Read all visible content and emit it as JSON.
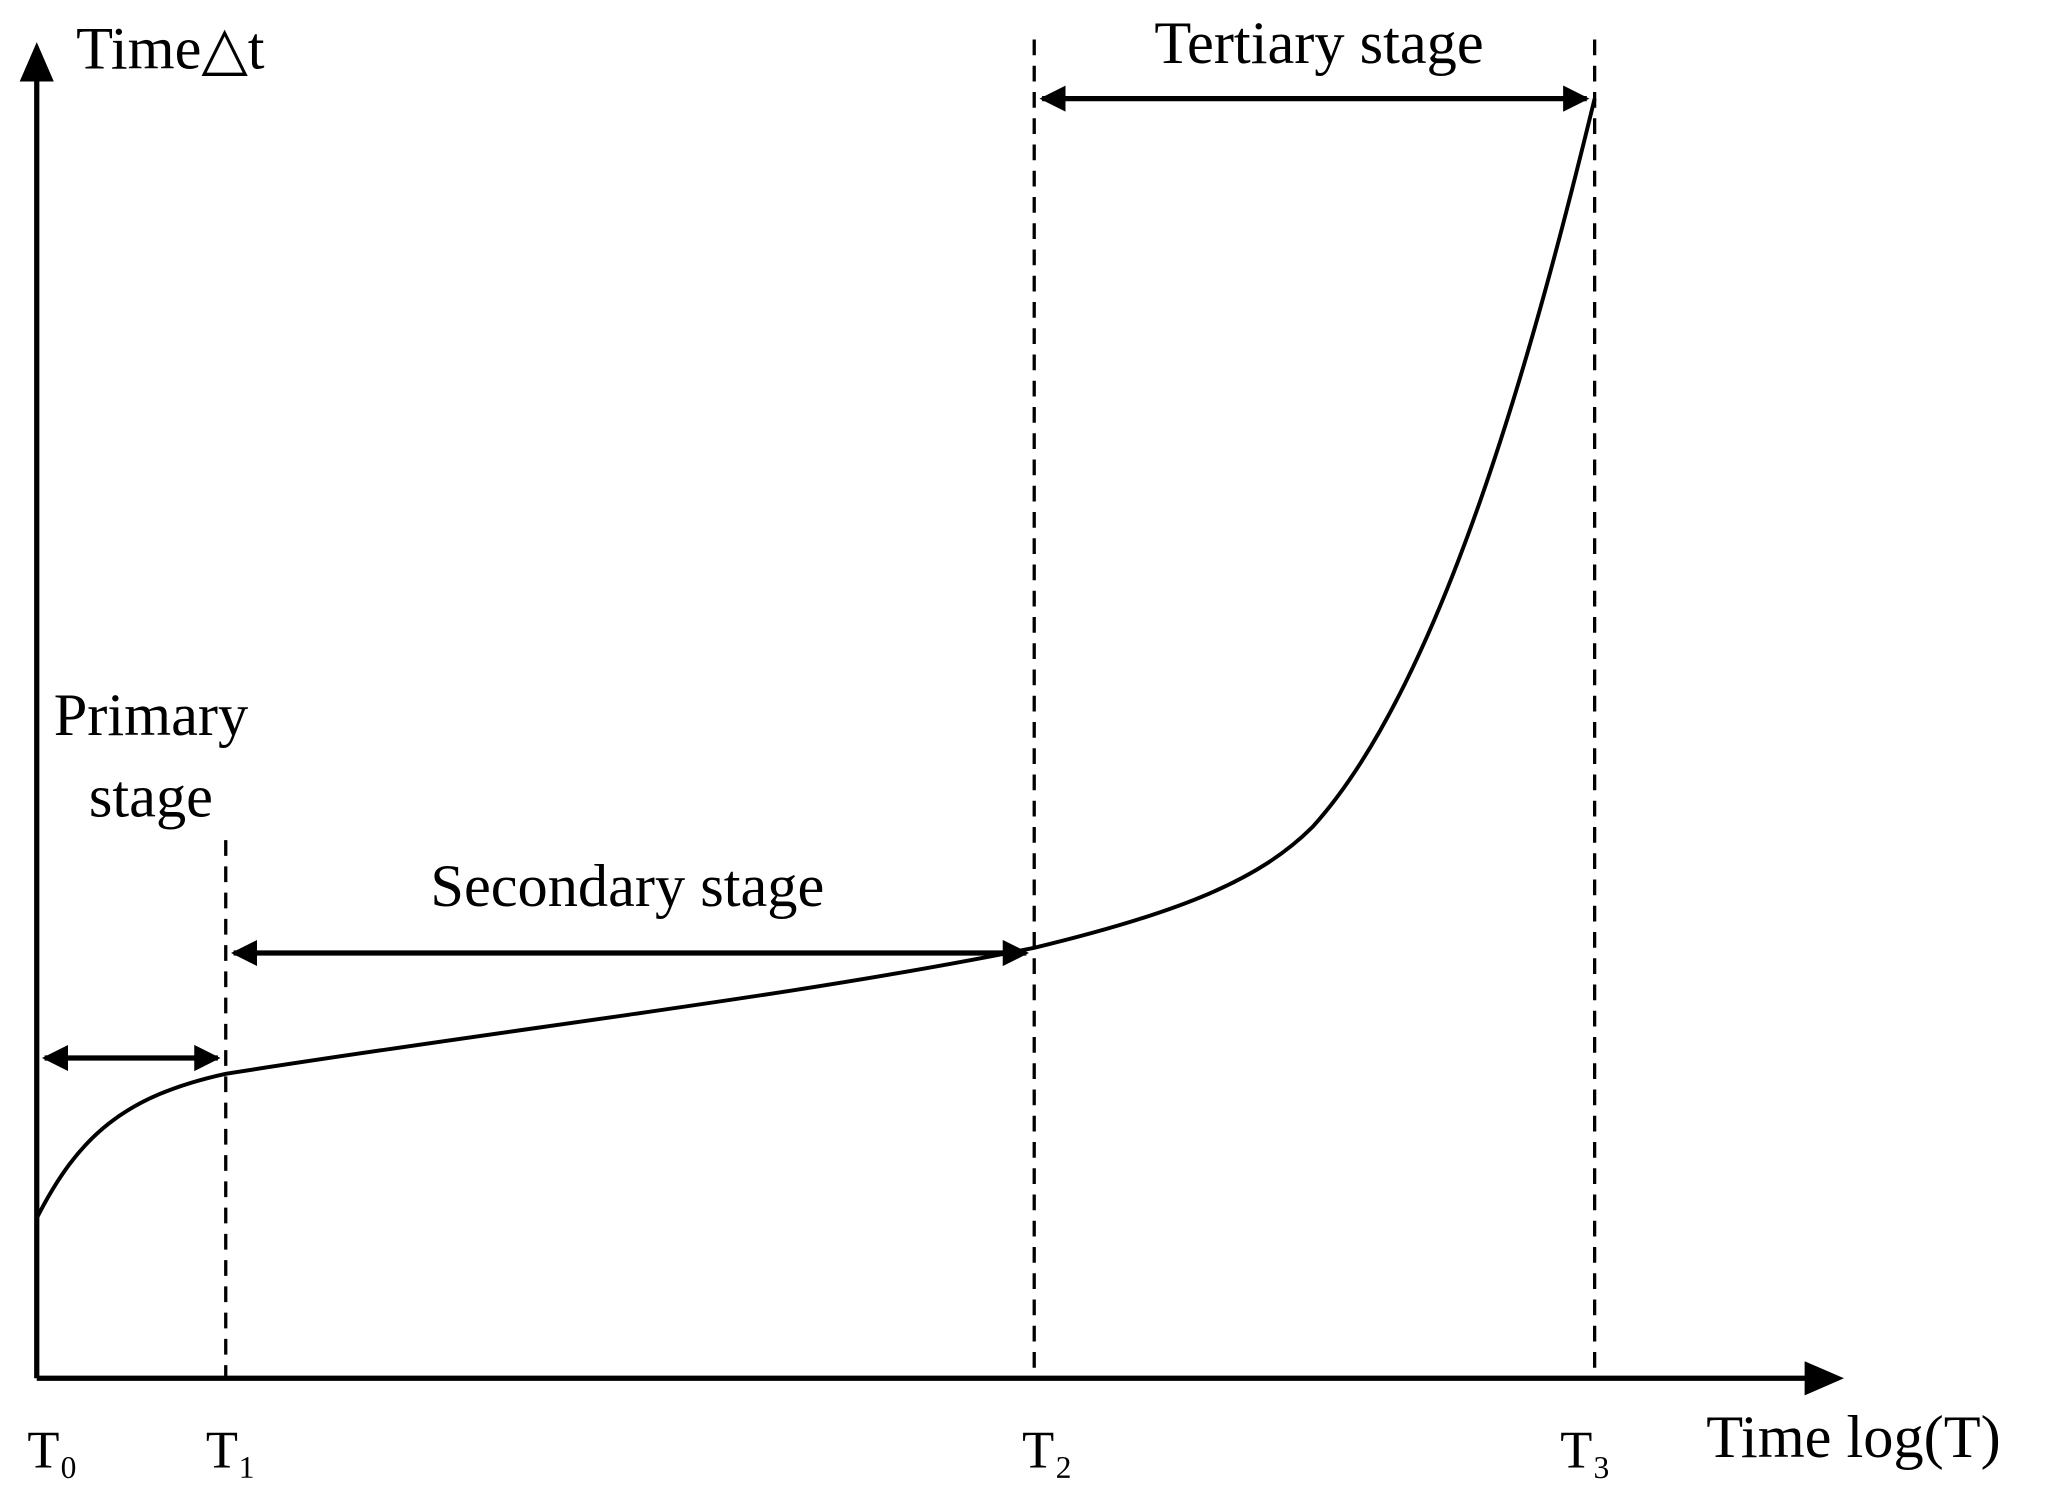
{
  "y_axis_label": "Time△t",
  "x_axis_label": "Time log(T)",
  "stages": {
    "primary": [
      "Primary",
      "stage"
    ],
    "secondary": "Secondary stage",
    "tertiary": "Tertiary stage"
  },
  "markers": [
    "T₀",
    "T₁",
    "T₂",
    "T₃"
  ]
}
